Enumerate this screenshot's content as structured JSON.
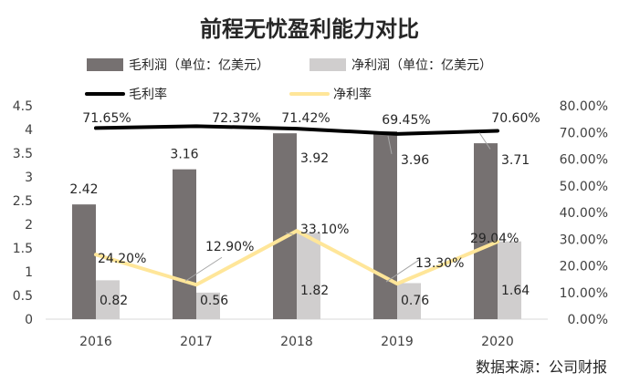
{
  "chart_data": {
    "type": "bar",
    "title": "前程无忧盈利能力对比",
    "categories": [
      "2016",
      "2017",
      "2018",
      "2019",
      "2020"
    ],
    "series": [
      {
        "name": "毛利润（单位：亿美元）",
        "kind": "bar",
        "axis": "left",
        "color": "#767171",
        "values": [
          2.42,
          3.16,
          3.92,
          3.96,
          3.71
        ],
        "labels": [
          "2.42",
          "3.16",
          "3.92",
          "3.96",
          "3.71"
        ]
      },
      {
        "name": "净利润（单位：亿美元）",
        "kind": "bar",
        "axis": "left",
        "color": "#d0cece",
        "values": [
          0.82,
          0.56,
          1.82,
          0.76,
          1.64
        ],
        "labels": [
          "0.82",
          "0.56",
          "1.82",
          "0.76",
          "1.64"
        ]
      },
      {
        "name": "毛利率",
        "kind": "line",
        "axis": "right",
        "color": "#000000",
        "values": [
          71.65,
          72.37,
          71.42,
          69.45,
          70.6
        ],
        "labels": [
          "71.65%",
          "72.37%",
          "71.42%",
          "69.45%",
          "70.60%"
        ]
      },
      {
        "name": "净利率",
        "kind": "line",
        "axis": "right",
        "color": "#ffe699",
        "values": [
          24.2,
          12.9,
          33.1,
          13.3,
          29.04
        ],
        "labels": [
          "24.20%",
          "12.90%",
          "33.10%",
          "13.30%",
          "29.04%"
        ]
      }
    ],
    "y_left": {
      "min": 0,
      "max": 4.5,
      "step": 0.5,
      "ticks": [
        "0",
        "0.5",
        "1",
        "1.5",
        "2",
        "2.5",
        "3",
        "3.5",
        "4",
        "4.5"
      ]
    },
    "y_right": {
      "min": 0,
      "max": 80,
      "step": 10,
      "ticks": [
        "0.00%",
        "10.00%",
        "20.00%",
        "30.00%",
        "40.00%",
        "50.00%",
        "60.00%",
        "70.00%",
        "80.00%"
      ]
    },
    "grid": false,
    "legend": "top",
    "source": "数据来源：公司财报"
  }
}
